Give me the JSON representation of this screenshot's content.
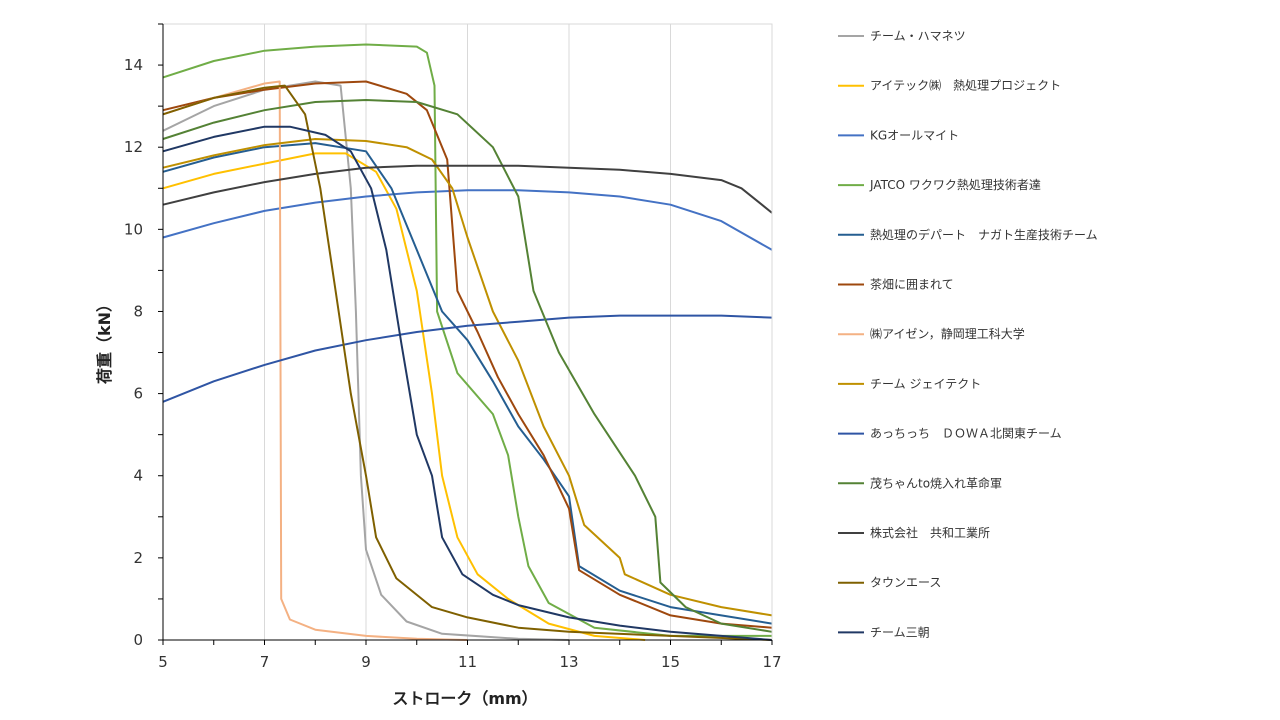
{
  "chart_data": {
    "type": "line",
    "xlabel": "ストローク（mm）",
    "ylabel": "荷重（kN）",
    "xlim": [
      5,
      17
    ],
    "ylim": [
      0,
      15
    ],
    "xticks": [
      5,
      7,
      9,
      11,
      13,
      15,
      17
    ],
    "yticks": [
      0,
      2,
      4,
      6,
      8,
      10,
      12,
      14
    ],
    "grid": "vertical",
    "legend_position": "right",
    "series": [
      {
        "name": "チーム・ハマネツ",
        "color": "#a5a5a5",
        "points": [
          [
            5,
            12.4
          ],
          [
            6,
            13.0
          ],
          [
            7,
            13.4
          ],
          [
            8,
            13.6
          ],
          [
            8.5,
            13.5
          ],
          [
            8.7,
            11
          ],
          [
            8.8,
            8
          ],
          [
            8.9,
            4
          ],
          [
            9.0,
            2.2
          ],
          [
            9.3,
            1.1
          ],
          [
            9.8,
            0.45
          ],
          [
            10.5,
            0.15
          ],
          [
            12,
            0.03
          ],
          [
            13,
            0
          ]
        ]
      },
      {
        "name": "アイテック㈱　熱処理プロジェクト",
        "color": "#ffc000",
        "points": [
          [
            5,
            11.0
          ],
          [
            6,
            11.35
          ],
          [
            7,
            11.6
          ],
          [
            8,
            11.85
          ],
          [
            8.6,
            11.85
          ],
          [
            9.2,
            11.4
          ],
          [
            9.6,
            10.5
          ],
          [
            10.0,
            8.5
          ],
          [
            10.3,
            6.0
          ],
          [
            10.5,
            4.0
          ],
          [
            10.8,
            2.5
          ],
          [
            11.2,
            1.6
          ],
          [
            11.8,
            1.0
          ],
          [
            12.6,
            0.4
          ],
          [
            13.5,
            0.1
          ],
          [
            14.5,
            0
          ]
        ]
      },
      {
        "name": "KGオールマイト",
        "color": "#4472c4",
        "points": [
          [
            5,
            9.8
          ],
          [
            6,
            10.15
          ],
          [
            7,
            10.45
          ],
          [
            8,
            10.65
          ],
          [
            9,
            10.8
          ],
          [
            10,
            10.9
          ],
          [
            11,
            10.95
          ],
          [
            12,
            10.95
          ],
          [
            13,
            10.9
          ],
          [
            14,
            10.8
          ],
          [
            15,
            10.6
          ],
          [
            16,
            10.2
          ],
          [
            17,
            9.5
          ]
        ]
      },
      {
        "name": "JATCO ワクワク熱処理技術者達",
        "color": "#70ad47",
        "points": [
          [
            5,
            13.7
          ],
          [
            6,
            14.1
          ],
          [
            7,
            14.35
          ],
          [
            8,
            14.45
          ],
          [
            9,
            14.5
          ],
          [
            10,
            14.45
          ],
          [
            10.2,
            14.3
          ],
          [
            10.35,
            13.5
          ],
          [
            10.4,
            8.0
          ],
          [
            10.8,
            6.5
          ],
          [
            11.5,
            5.5
          ],
          [
            11.8,
            4.5
          ],
          [
            12.0,
            3.0
          ],
          [
            12.2,
            1.8
          ],
          [
            12.6,
            0.9
          ],
          [
            13.5,
            0.3
          ],
          [
            15,
            0.1
          ],
          [
            17,
            0.1
          ]
        ]
      },
      {
        "name": "熱処理のデパート　ナガト生産技術チーム",
        "color": "#255e91",
        "points": [
          [
            5,
            11.4
          ],
          [
            6,
            11.75
          ],
          [
            7,
            12.0
          ],
          [
            8,
            12.1
          ],
          [
            9,
            11.9
          ],
          [
            9.5,
            11.0
          ],
          [
            10.0,
            9.5
          ],
          [
            10.5,
            8.0
          ],
          [
            11.0,
            7.3
          ],
          [
            11.5,
            6.3
          ],
          [
            12.0,
            5.2
          ],
          [
            12.5,
            4.4
          ],
          [
            13.0,
            3.5
          ],
          [
            13.2,
            1.8
          ],
          [
            14,
            1.2
          ],
          [
            15,
            0.8
          ],
          [
            16,
            0.6
          ],
          [
            17,
            0.4
          ]
        ]
      },
      {
        "name": "茶畑に囲まれて",
        "color": "#9e480e",
        "points": [
          [
            5,
            12.9
          ],
          [
            6,
            13.2
          ],
          [
            7,
            13.4
          ],
          [
            8,
            13.55
          ],
          [
            9,
            13.6
          ],
          [
            9.8,
            13.3
          ],
          [
            10.2,
            12.9
          ],
          [
            10.6,
            11.7
          ],
          [
            10.8,
            8.5
          ],
          [
            11.2,
            7.5
          ],
          [
            11.6,
            6.4
          ],
          [
            12.0,
            5.5
          ],
          [
            12.5,
            4.5
          ],
          [
            13.0,
            3.2
          ],
          [
            13.2,
            1.7
          ],
          [
            14,
            1.1
          ],
          [
            15,
            0.6
          ],
          [
            16,
            0.4
          ],
          [
            17,
            0.3
          ]
        ]
      },
      {
        "name": "㈱アイゼン，静岡理工科大学",
        "color": "#f4b183",
        "points": [
          [
            5,
            12.8
          ],
          [
            6,
            13.2
          ],
          [
            7,
            13.55
          ],
          [
            7.3,
            13.6
          ],
          [
            7.33,
            1.0
          ],
          [
            7.5,
            0.5
          ],
          [
            8,
            0.25
          ],
          [
            9,
            0.1
          ],
          [
            10,
            0.03
          ],
          [
            11,
            0
          ]
        ]
      },
      {
        "name": "チーム ジェイテクト",
        "color": "#bf9000",
        "points": [
          [
            5,
            11.5
          ],
          [
            6,
            11.8
          ],
          [
            7,
            12.05
          ],
          [
            8,
            12.2
          ],
          [
            9,
            12.15
          ],
          [
            9.8,
            12.0
          ],
          [
            10.3,
            11.7
          ],
          [
            10.7,
            11.0
          ],
          [
            11.0,
            9.8
          ],
          [
            11.5,
            8.0
          ],
          [
            12.0,
            6.8
          ],
          [
            12.5,
            5.2
          ],
          [
            13.0,
            4.0
          ],
          [
            13.3,
            2.8
          ],
          [
            14.0,
            2.0
          ],
          [
            14.1,
            1.6
          ],
          [
            15,
            1.1
          ],
          [
            16,
            0.8
          ],
          [
            17,
            0.6
          ]
        ]
      },
      {
        "name": "あっちっち　ＤＯＷＡ北関東チーム",
        "color": "#2f55a4",
        "points": [
          [
            5,
            5.8
          ],
          [
            6,
            6.3
          ],
          [
            7,
            6.7
          ],
          [
            8,
            7.05
          ],
          [
            9,
            7.3
          ],
          [
            10,
            7.5
          ],
          [
            11,
            7.65
          ],
          [
            12,
            7.75
          ],
          [
            13,
            7.85
          ],
          [
            14,
            7.9
          ],
          [
            15,
            7.9
          ],
          [
            16,
            7.9
          ],
          [
            17,
            7.85
          ]
        ]
      },
      {
        "name": "茂ちゃんto焼入れ革命軍",
        "color": "#548235",
        "points": [
          [
            5,
            12.2
          ],
          [
            6,
            12.6
          ],
          [
            7,
            12.9
          ],
          [
            8,
            13.1
          ],
          [
            9,
            13.15
          ],
          [
            10,
            13.1
          ],
          [
            10.8,
            12.8
          ],
          [
            11.5,
            12.0
          ],
          [
            12.0,
            10.8
          ],
          [
            12.3,
            8.5
          ],
          [
            12.8,
            7.0
          ],
          [
            13.5,
            5.5
          ],
          [
            14.3,
            4.0
          ],
          [
            14.7,
            3.0
          ],
          [
            14.8,
            1.4
          ],
          [
            15.3,
            0.8
          ],
          [
            16,
            0.4
          ],
          [
            17,
            0.2
          ]
        ]
      },
      {
        "name": "株式会社　共和工業所",
        "color": "#404040",
        "points": [
          [
            5,
            10.6
          ],
          [
            6,
            10.9
          ],
          [
            7,
            11.15
          ],
          [
            8,
            11.35
          ],
          [
            9,
            11.5
          ],
          [
            10,
            11.55
          ],
          [
            11,
            11.55
          ],
          [
            12,
            11.55
          ],
          [
            13,
            11.5
          ],
          [
            14,
            11.45
          ],
          [
            15,
            11.35
          ],
          [
            16,
            11.2
          ],
          [
            16.4,
            11.0
          ],
          [
            16.8,
            10.6
          ],
          [
            17,
            10.4
          ]
        ]
      },
      {
        "name": "タウンエース",
        "color": "#7f6000",
        "points": [
          [
            5,
            12.8
          ],
          [
            6,
            13.2
          ],
          [
            7,
            13.45
          ],
          [
            7.4,
            13.5
          ],
          [
            7.8,
            12.8
          ],
          [
            8.1,
            11.0
          ],
          [
            8.4,
            8.5
          ],
          [
            8.7,
            6.0
          ],
          [
            9.0,
            4.0
          ],
          [
            9.2,
            2.5
          ],
          [
            9.6,
            1.5
          ],
          [
            10.3,
            0.8
          ],
          [
            11.0,
            0.55
          ],
          [
            12,
            0.3
          ],
          [
            13,
            0.2
          ],
          [
            15,
            0.1
          ],
          [
            17,
            0
          ]
        ]
      },
      {
        "name": "チーム三朝",
        "color": "#203864",
        "points": [
          [
            5,
            11.9
          ],
          [
            6,
            12.25
          ],
          [
            7,
            12.5
          ],
          [
            7.5,
            12.5
          ],
          [
            8.2,
            12.3
          ],
          [
            8.7,
            11.9
          ],
          [
            9.1,
            11.0
          ],
          [
            9.4,
            9.5
          ],
          [
            9.7,
            7.2
          ],
          [
            10.0,
            5.0
          ],
          [
            10.3,
            4.0
          ],
          [
            10.5,
            2.5
          ],
          [
            10.9,
            1.6
          ],
          [
            11.5,
            1.1
          ],
          [
            12,
            0.85
          ],
          [
            13,
            0.55
          ],
          [
            14,
            0.35
          ],
          [
            15,
            0.2
          ],
          [
            16,
            0.1
          ],
          [
            17,
            0
          ]
        ]
      }
    ]
  }
}
